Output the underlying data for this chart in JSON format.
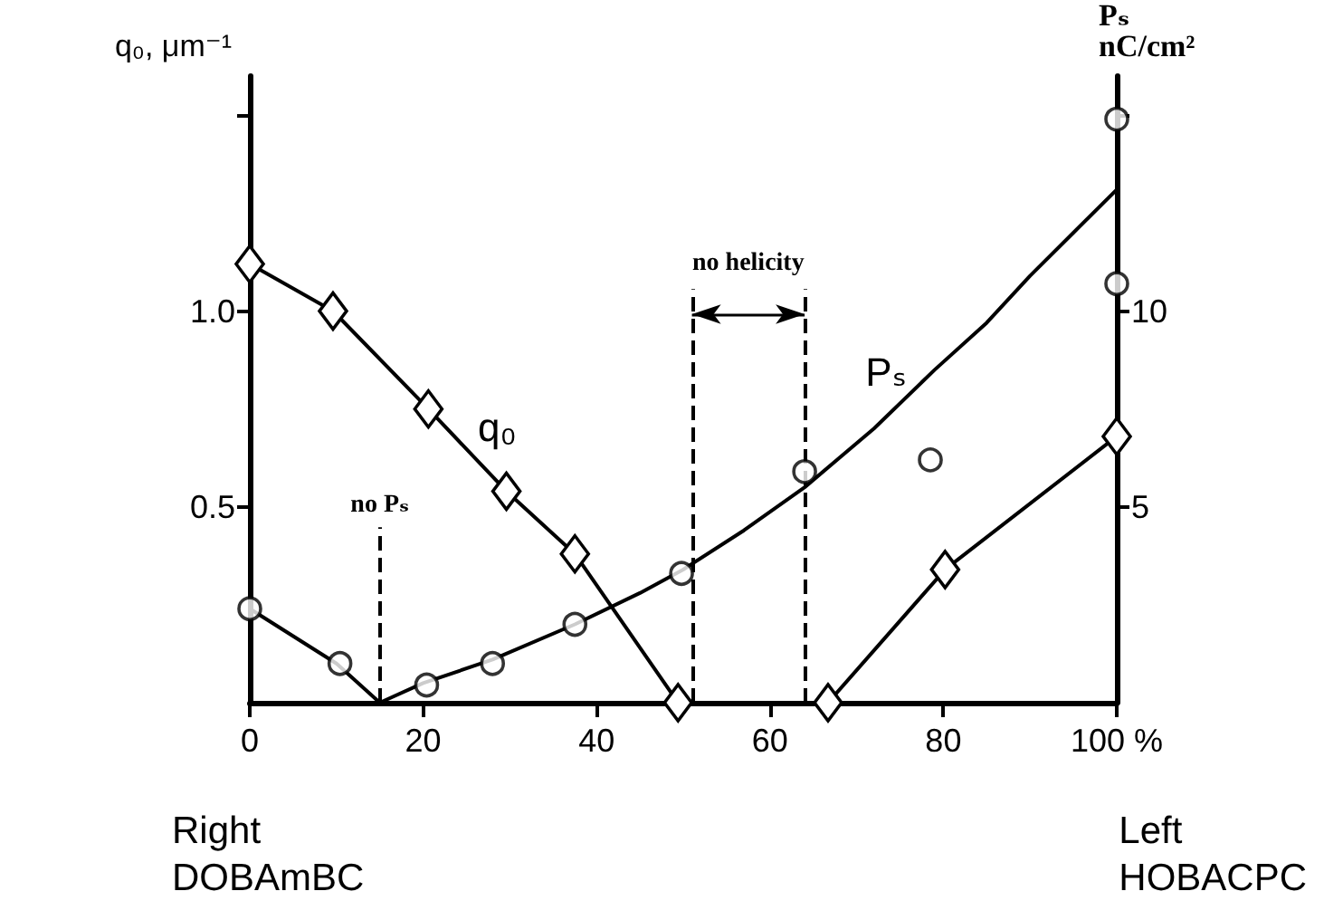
{
  "chart_data": {
    "type": "line",
    "ylabel": "q₀, μm⁻¹",
    "y2label": "Pₛ\nnC/cm²",
    "xlim": [
      0,
      100
    ],
    "xticks": [
      0,
      20,
      40,
      60,
      80,
      {
        "value": 100,
        "label": "100 %"
      }
    ],
    "ylim": [
      0,
      1.6
    ],
    "yticks": [
      0.5,
      {
        "value": 1,
        "label": "1.0"
      },
      {
        "value": 1.5,
        "label": null
      }
    ],
    "y2lim": [
      0,
      16
    ],
    "y2ticks": [
      5,
      10,
      {
        "value": 15,
        "label": null
      }
    ],
    "series": [
      {
        "name": "q₀",
        "marker": "diamond",
        "color": "#000000",
        "x": [
          0,
          9.6,
          20.6,
          29.6,
          37.5,
          49.4,
          66.7,
          80.2,
          100
        ],
        "values": [
          1.12,
          1.0,
          0.75,
          0.54,
          0.38,
          0,
          0,
          0.34,
          0.68
        ]
      },
      {
        "name": "Pₛ",
        "type": "scatter",
        "marker": "circle",
        "axis": "y2",
        "color": "#000000",
        "x": [
          0,
          10.4,
          20.4,
          28,
          37.5,
          49.8,
          64,
          78.5,
          100,
          100
        ],
        "values": [
          2.4,
          1.0,
          0.45,
          1.0,
          2.0,
          3.3,
          5.9,
          6.2,
          10.7,
          14.9
        ]
      },
      {
        "marker": "none",
        "axis": "y2",
        "color": "#000000",
        "x": [
          0,
          10,
          15,
          20,
          28,
          37.5,
          45,
          50,
          57,
          64,
          72,
          79,
          85,
          90,
          95,
          100
        ],
        "values": [
          2.4,
          1.0,
          0,
          0.5,
          1.1,
          2.0,
          2.8,
          3.4,
          4.4,
          5.5,
          7.0,
          8.5,
          9.7,
          10.9,
          12.0,
          13.1
        ]
      }
    ],
    "ref_lines": [
      {
        "axis": "x",
        "value": 15,
        "label": "no Pₛ",
        "line_style": "dashed"
      },
      {
        "axis": "x",
        "value": 51,
        "line_style": "dashed"
      },
      {
        "axis": "x",
        "value": 64,
        "line_style": "dashed"
      }
    ],
    "annotations": [
      "Right\nDOBAmBC",
      "Left\nHOBACPC",
      "no helicity"
    ],
    "grid": false,
    "legend": false
  }
}
